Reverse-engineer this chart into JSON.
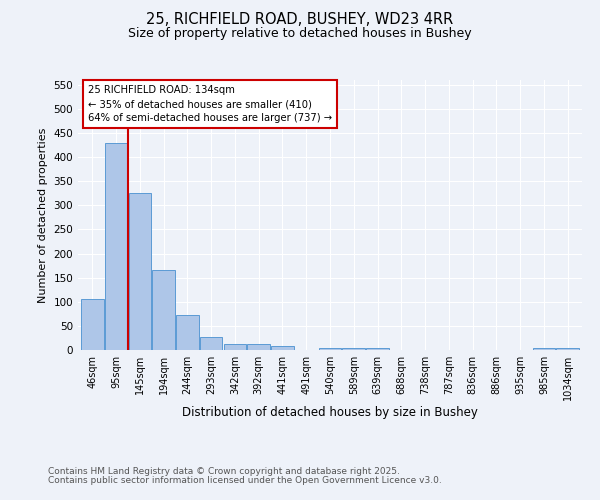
{
  "title1": "25, RICHFIELD ROAD, BUSHEY, WD23 4RR",
  "title2": "Size of property relative to detached houses in Bushey",
  "xlabel": "Distribution of detached houses by size in Bushey",
  "ylabel": "Number of detached properties",
  "categories": [
    "46sqm",
    "95sqm",
    "145sqm",
    "194sqm",
    "244sqm",
    "293sqm",
    "342sqm",
    "392sqm",
    "441sqm",
    "491sqm",
    "540sqm",
    "589sqm",
    "639sqm",
    "688sqm",
    "738sqm",
    "787sqm",
    "836sqm",
    "886sqm",
    "935sqm",
    "985sqm",
    "1034sqm"
  ],
  "values": [
    105,
    430,
    325,
    165,
    73,
    27,
    12,
    12,
    9,
    0,
    5,
    4,
    4,
    0,
    0,
    0,
    0,
    0,
    0,
    4,
    4
  ],
  "bar_color": "#aec6e8",
  "bar_edge_color": "#5b9bd5",
  "vline_x": 2,
  "vline_color": "#cc0000",
  "annotation_text": "25 RICHFIELD ROAD: 134sqm\n← 35% of detached houses are smaller (410)\n64% of semi-detached houses are larger (737) →",
  "annotation_box_color": "#cc0000",
  "ylim": [
    0,
    560
  ],
  "yticks": [
    0,
    50,
    100,
    150,
    200,
    250,
    300,
    350,
    400,
    450,
    500,
    550
  ],
  "footer1": "Contains HM Land Registry data © Crown copyright and database right 2025.",
  "footer2": "Contains public sector information licensed under the Open Government Licence v3.0.",
  "bg_color": "#eef2f9"
}
